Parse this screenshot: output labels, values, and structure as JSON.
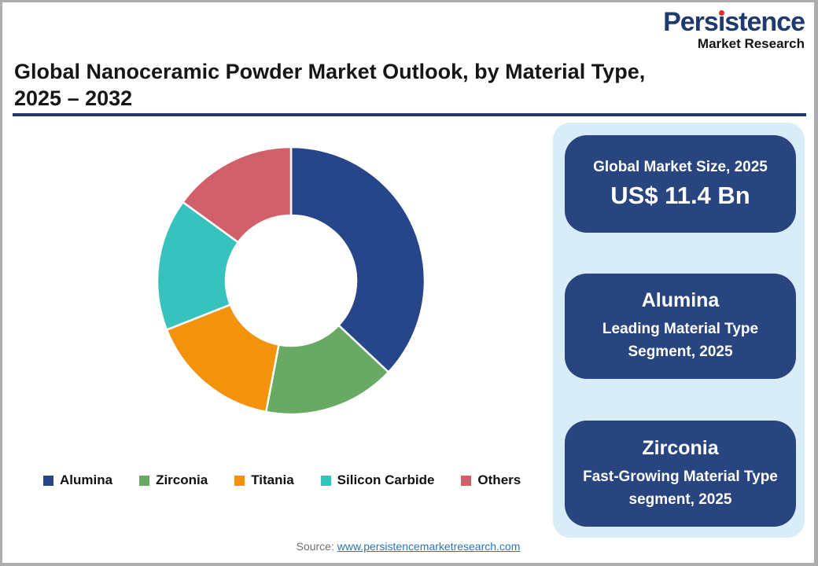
{
  "logo": {
    "part1": "Pers",
    "part2": "i",
    "part3": "stence",
    "subtitle": "Market Research"
  },
  "title": {
    "line1": "Global Nanoceramic Powder Market Outlook, by Material Type,",
    "line2": "2025 – 2032"
  },
  "chart_data": {
    "type": "pie",
    "subtype": "donut",
    "title": "Global Nanoceramic Powder Market Outlook, by Material Type, 2025 – 2032",
    "categories": [
      "Alumina",
      "Zirconia",
      "Titania",
      "Silicon Carbide",
      "Others"
    ],
    "values": [
      37,
      16,
      16,
      16,
      15
    ],
    "colors": [
      "#274689",
      "#68A963",
      "#F3920B",
      "#38C2BD",
      "#D2606A"
    ],
    "legend_position": "bottom",
    "start_angle_deg": 0,
    "direction": "clockwise",
    "inner_radius_ratio": 0.49
  },
  "cards": [
    {
      "heading": "Global Market Size, 2025",
      "value": "US$ 11.4 Bn"
    },
    {
      "heading": "Alumina",
      "sub": "Leading Material Type Segment, 2025"
    },
    {
      "heading": "Zirconia",
      "sub": "Fast-Growing Material Type segment, 2025"
    }
  ],
  "source": {
    "label": "Source:",
    "link": "www.persistencemarketresearch.com"
  },
  "colors": {
    "navy_rule": "#1F3864",
    "card_navy": "#28457F",
    "panel_blue": "#D9EDF8",
    "link_blue": "#2E75B6",
    "logo_navy": "#1E3A6E",
    "logo_red": "#D6342C"
  }
}
